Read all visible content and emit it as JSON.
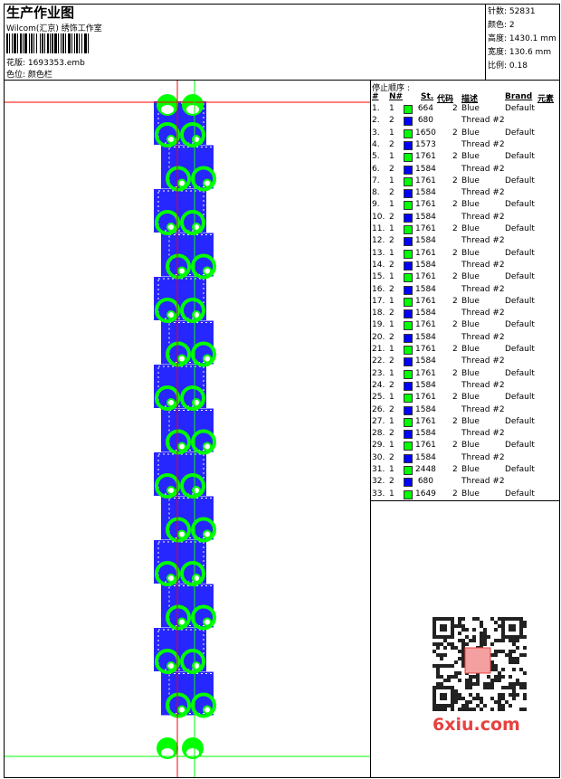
{
  "header": {
    "title": "生产作业图",
    "company": "Wilcom(汇京) 绣饰工作室",
    "file_label": "花版:",
    "file": "1693353.emb",
    "colorbar_label": "色位:",
    "colorbar": "颜色栏"
  },
  "info": [
    {
      "label": "针数:",
      "value": "52831"
    },
    {
      "label": "颜色:",
      "value": "2"
    },
    {
      "label": "高度:",
      "value": "1430.1 mm"
    },
    {
      "label": "宽度:",
      "value": "130.6 mm"
    },
    {
      "label": "比例:",
      "value": "0.18"
    }
  ],
  "table": {
    "title": "停止顺序 :",
    "headers": [
      "#",
      "N#",
      "St.",
      "代码",
      "描述",
      "Brand",
      "元素"
    ],
    "rows": [
      [
        "1.",
        "1",
        "#00ff00",
        "664",
        "2",
        "Blue",
        "Default"
      ],
      [
        "2.",
        "2",
        "#0000ff",
        "680",
        "",
        "Thread #2",
        ""
      ],
      [
        "3.",
        "1",
        "#00ff00",
        "1650",
        "2",
        "Blue",
        "Default"
      ],
      [
        "4.",
        "2",
        "#0000ff",
        "1573",
        "",
        "Thread #2",
        ""
      ],
      [
        "5.",
        "1",
        "#00ff00",
        "1761",
        "2",
        "Blue",
        "Default"
      ],
      [
        "6.",
        "2",
        "#0000ff",
        "1584",
        "",
        "Thread #2",
        ""
      ],
      [
        "7.",
        "1",
        "#00ff00",
        "1761",
        "2",
        "Blue",
        "Default"
      ],
      [
        "8.",
        "2",
        "#0000ff",
        "1584",
        "",
        "Thread #2",
        ""
      ],
      [
        "9.",
        "1",
        "#00ff00",
        "1761",
        "2",
        "Blue",
        "Default"
      ],
      [
        "10.",
        "2",
        "#0000ff",
        "1584",
        "",
        "Thread #2",
        ""
      ],
      [
        "11.",
        "1",
        "#00ff00",
        "1761",
        "2",
        "Blue",
        "Default"
      ],
      [
        "12.",
        "2",
        "#0000ff",
        "1584",
        "",
        "Thread #2",
        ""
      ],
      [
        "13.",
        "1",
        "#00ff00",
        "1761",
        "2",
        "Blue",
        "Default"
      ],
      [
        "14.",
        "2",
        "#0000ff",
        "1584",
        "",
        "Thread #2",
        ""
      ],
      [
        "15.",
        "1",
        "#00ff00",
        "1761",
        "2",
        "Blue",
        "Default"
      ],
      [
        "16.",
        "2",
        "#0000ff",
        "1584",
        "",
        "Thread #2",
        ""
      ],
      [
        "17.",
        "1",
        "#00ff00",
        "1761",
        "2",
        "Blue",
        "Default"
      ],
      [
        "18.",
        "2",
        "#0000ff",
        "1584",
        "",
        "Thread #2",
        ""
      ],
      [
        "19.",
        "1",
        "#00ff00",
        "1761",
        "2",
        "Blue",
        "Default"
      ],
      [
        "20.",
        "2",
        "#0000ff",
        "1584",
        "",
        "Thread #2",
        ""
      ],
      [
        "21.",
        "1",
        "#00ff00",
        "1761",
        "2",
        "Blue",
        "Default"
      ],
      [
        "22.",
        "2",
        "#0000ff",
        "1584",
        "",
        "Thread #2",
        ""
      ],
      [
        "23.",
        "1",
        "#00ff00",
        "1761",
        "2",
        "Blue",
        "Default"
      ],
      [
        "24.",
        "2",
        "#0000ff",
        "1584",
        "",
        "Thread #2",
        ""
      ],
      [
        "25.",
        "1",
        "#00ff00",
        "1761",
        "2",
        "Blue",
        "Default"
      ],
      [
        "26.",
        "2",
        "#0000ff",
        "1584",
        "",
        "Thread #2",
        ""
      ],
      [
        "27.",
        "1",
        "#00ff00",
        "1761",
        "2",
        "Blue",
        "Default"
      ],
      [
        "28.",
        "2",
        "#0000ff",
        "1584",
        "",
        "Thread #2",
        ""
      ],
      [
        "29.",
        "1",
        "#00ff00",
        "1761",
        "2",
        "Blue",
        "Default"
      ],
      [
        "30.",
        "2",
        "#0000ff",
        "1584",
        "",
        "Thread #2",
        ""
      ],
      [
        "31.",
        "1",
        "#00ff00",
        "2448",
        "2",
        "Blue",
        "Default"
      ],
      [
        "32.",
        "2",
        "#0000ff",
        "680",
        "",
        "Thread #2",
        ""
      ],
      [
        "33.",
        "1",
        "#00ff00",
        "1649",
        "2",
        "Blue",
        "Default"
      ]
    ]
  },
  "watermark": {
    "site": "6xiu.com"
  },
  "colors": {
    "green": "#00ff00",
    "blue": "#0000ff",
    "guide_red": "#ff0000"
  }
}
